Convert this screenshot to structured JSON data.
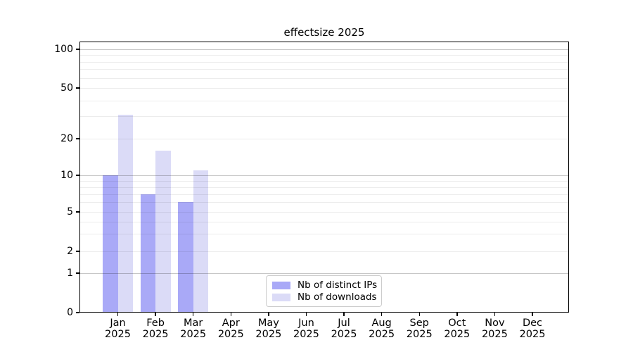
{
  "chart_data": {
    "type": "bar",
    "title": "effectsize 2025",
    "x_year": "2025",
    "categories": [
      "Jan",
      "Feb",
      "Mar",
      "Apr",
      "May",
      "Jun",
      "Jul",
      "Aug",
      "Sep",
      "Oct",
      "Nov",
      "Dec"
    ],
    "series": [
      {
        "name": "Nb of distinct IPs",
        "color": "#a9a9f7",
        "values": [
          10,
          7,
          6,
          0,
          0,
          0,
          0,
          0,
          0,
          0,
          0,
          0
        ]
      },
      {
        "name": "Nb of downloads",
        "color": "#dbdbf7",
        "values": [
          31,
          16,
          11,
          0,
          0,
          0,
          0,
          0,
          0,
          0,
          0,
          0
        ]
      }
    ],
    "yticks": [
      0,
      1,
      2,
      5,
      10,
      20,
      50,
      100
    ],
    "ylim": [
      0,
      100
    ],
    "scale": "pseudo-log",
    "grid": "horizontal",
    "legend_position": "lower center",
    "colors": {
      "axis": "#000000",
      "major_grid": "#c7c7c7",
      "minor_grid": "#ededed",
      "background": "#ffffff"
    }
  }
}
